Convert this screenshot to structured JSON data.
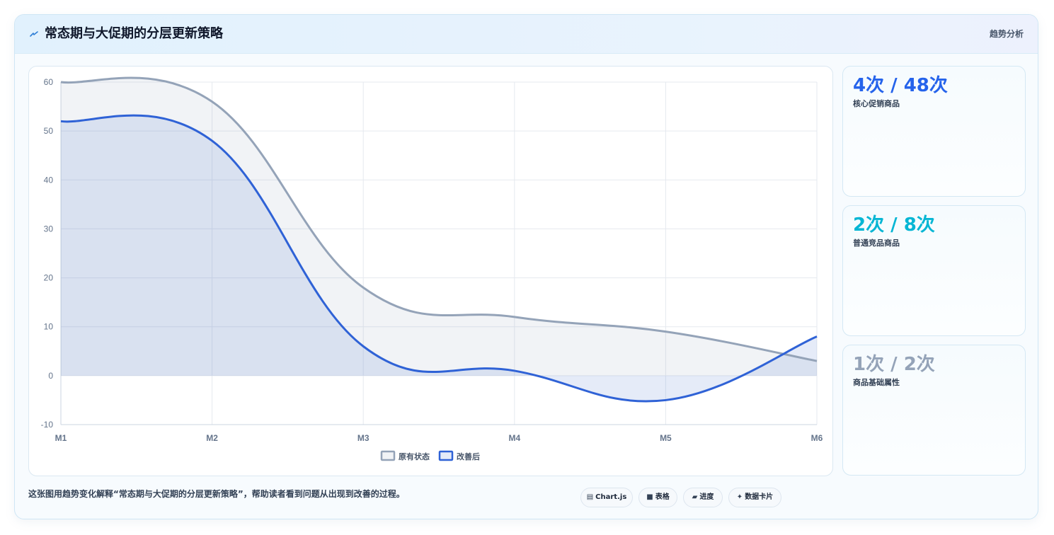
{
  "header": {
    "title": "常态期与大促期的分层更新策略",
    "tag": "趋势分析",
    "icon": "lightning-icon"
  },
  "chart_data": {
    "type": "area",
    "categories": [
      "M1",
      "M2",
      "M3",
      "M4",
      "M5",
      "M6"
    ],
    "ylim": [
      -10,
      60
    ],
    "yticks": [
      -10,
      0,
      10,
      20,
      30,
      40,
      50,
      60
    ],
    "grid": true,
    "legend_position": "bottom",
    "series": [
      {
        "name": "原有状态",
        "values": [
          60,
          56,
          18,
          12,
          9,
          3
        ],
        "color": "#94a3b8",
        "fill": "rgba(148,163,184,0.13)"
      },
      {
        "name": "改善后",
        "values": [
          52,
          48,
          6,
          1,
          -5,
          8
        ],
        "color": "#2f62d6",
        "fill": "rgba(96,130,210,0.16)"
      }
    ]
  },
  "stats": [
    {
      "value": "4次 / 48次",
      "label": "核心促销商品",
      "color": "#2563eb"
    },
    {
      "value": "2次 / 8次",
      "label": "普通竞品商品",
      "color": "#06b6d4"
    },
    {
      "value": "1次 / 2次",
      "label": "商品基础属性",
      "color": "#94a3b8"
    }
  ],
  "footer": {
    "note": "这张图用趋势变化解释“常态期与大促期的分层更新策略”，帮助读者看到问题从出现到改善的过程。",
    "badges": [
      {
        "icon": "▤",
        "label": "Chart.js"
      },
      {
        "icon": "■",
        "label": "表格"
      },
      {
        "icon": "▰",
        "label": "进度"
      },
      {
        "icon": "✦",
        "label": "数据卡片"
      }
    ]
  }
}
